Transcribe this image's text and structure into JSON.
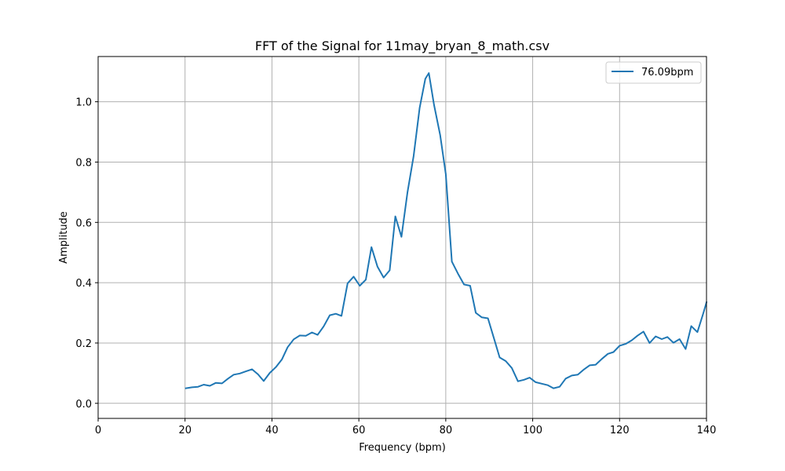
{
  "chart_data": {
    "type": "line",
    "title": "FFT of the Signal for 11may_bryan_8_math.csv",
    "xlabel": "Frequency (bpm)",
    "ylabel": "Amplitude",
    "xlim": [
      0,
      140
    ],
    "ylim": [
      -0.05,
      1.15
    ],
    "xticks": [
      0,
      20,
      40,
      60,
      80,
      100,
      120,
      140
    ],
    "yticks": [
      0.0,
      0.2,
      0.4,
      0.6,
      0.8,
      1.0
    ],
    "xtick_labels": [
      "0",
      "20",
      "40",
      "60",
      "80",
      "100",
      "120",
      "140"
    ],
    "ytick_labels": [
      "0.0",
      "0.2",
      "0.4",
      "0.6",
      "0.8",
      "1.0"
    ],
    "grid": true,
    "legend_position": "top-right",
    "line_color": "#1f77b4",
    "series": [
      {
        "name": "76.09bpm",
        "x": [
          20.2,
          21.6,
          23.0,
          24.3,
          25.7,
          27.1,
          28.5,
          29.9,
          31.2,
          32.6,
          34.0,
          35.4,
          36.8,
          38.1,
          39.5,
          40.9,
          42.3,
          43.6,
          45.0,
          46.4,
          47.8,
          49.2,
          50.5,
          51.9,
          53.3,
          54.7,
          56.0,
          57.4,
          58.8,
          60.2,
          61.6,
          62.9,
          64.3,
          65.7,
          67.1,
          68.4,
          69.8,
          71.2,
          72.6,
          74.0,
          75.3,
          76.1,
          77.3,
          78.7,
          80.0,
          81.4,
          82.8,
          84.2,
          85.6,
          86.9,
          88.3,
          89.7,
          91.1,
          92.4,
          93.8,
          95.2,
          96.6,
          98.0,
          99.3,
          100.7,
          102.1,
          103.5,
          104.8,
          106.2,
          107.6,
          109.0,
          110.4,
          111.7,
          113.1,
          114.5,
          115.9,
          117.3,
          118.6,
          120.0,
          121.4,
          122.8,
          124.1,
          125.5,
          126.9,
          128.3,
          129.7,
          131.0,
          132.4,
          133.8,
          135.2,
          136.5,
          137.9,
          139.3,
          140.0
        ],
        "y": [
          0.05,
          0.053,
          0.055,
          0.062,
          0.058,
          0.068,
          0.066,
          0.082,
          0.095,
          0.099,
          0.106,
          0.113,
          0.096,
          0.074,
          0.101,
          0.12,
          0.146,
          0.186,
          0.212,
          0.225,
          0.224,
          0.235,
          0.227,
          0.255,
          0.292,
          0.297,
          0.29,
          0.398,
          0.42,
          0.39,
          0.41,
          0.518,
          0.453,
          0.417,
          0.441,
          0.62,
          0.552,
          0.7,
          0.82,
          0.98,
          1.076,
          1.095,
          0.99,
          0.89,
          0.76,
          0.47,
          0.43,
          0.394,
          0.39,
          0.3,
          0.285,
          0.282,
          0.215,
          0.152,
          0.14,
          0.117,
          0.073,
          0.078,
          0.085,
          0.07,
          0.065,
          0.06,
          0.05,
          0.055,
          0.082,
          0.092,
          0.095,
          0.111,
          0.126,
          0.128,
          0.147,
          0.164,
          0.17,
          0.191,
          0.197,
          0.209,
          0.224,
          0.238,
          0.2,
          0.222,
          0.213,
          0.22,
          0.201,
          0.213,
          0.18,
          0.256,
          0.236,
          0.3,
          0.335
        ]
      }
    ]
  }
}
